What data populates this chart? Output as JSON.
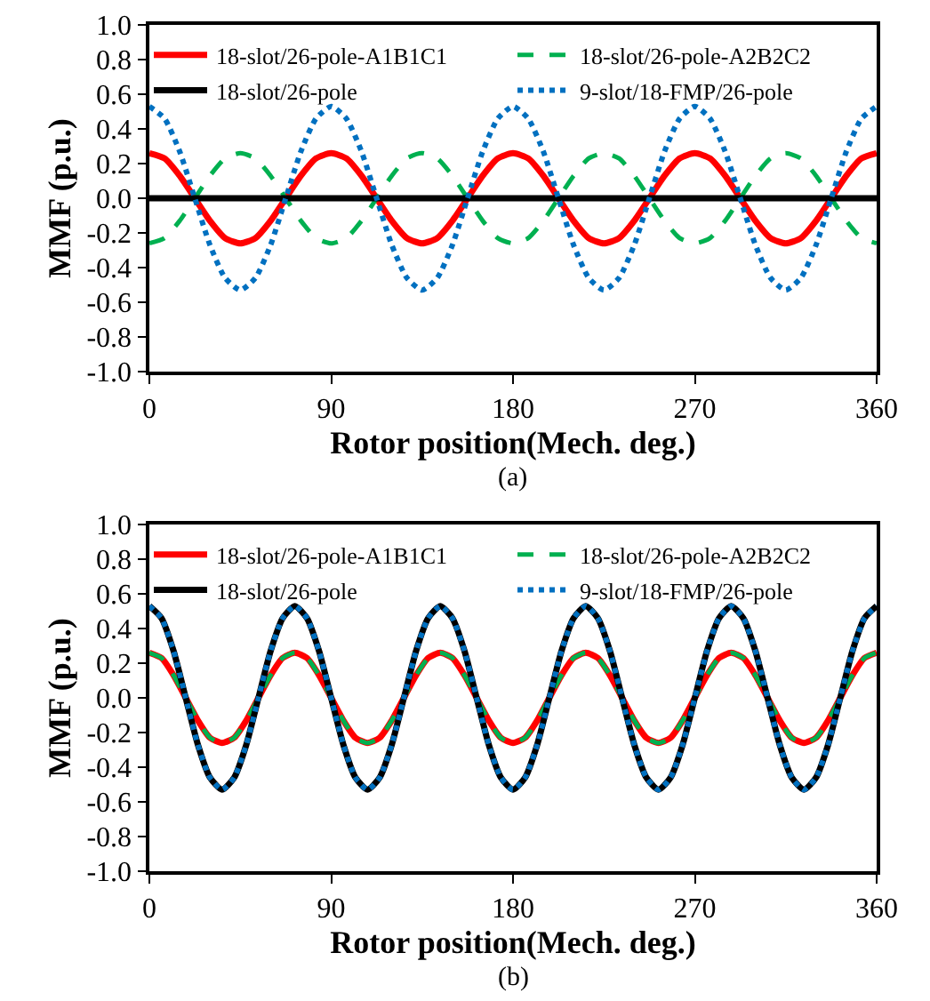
{
  "chart_data": [
    {
      "type": "line",
      "xlabel": "Rotor position(Mech. deg.)",
      "ylabel": "MMF (p.u.)",
      "annotations": [
        "(a)"
      ],
      "legend": "top",
      "grid": false,
      "marker": "none",
      "xlim": [
        0,
        360
      ],
      "xticks": [
        0,
        90,
        180,
        270,
        360
      ],
      "ylim": [
        -1,
        1
      ],
      "yticks": [
        {
          "value": -1,
          "label": "-1.0"
        },
        {
          "value": -0.8,
          "label": "-0.8"
        },
        {
          "value": -0.6,
          "label": "-0.6"
        },
        {
          "value": -0.4,
          "label": "-0.4"
        },
        {
          "value": -0.2,
          "label": "-0.2"
        },
        {
          "value": 0,
          "label": "0.0"
        },
        {
          "value": 0.2,
          "label": "0.2"
        },
        {
          "value": 0.4,
          "label": "0.4"
        },
        {
          "value": 0.6,
          "label": "0.6"
        },
        {
          "value": 0.8,
          "label": "0.8"
        },
        {
          "value": 1,
          "label": "1.0"
        }
      ],
      "x": [
        0,
        7.5,
        15,
        22.5,
        30,
        37.5,
        45,
        52.5,
        60,
        67.5,
        75,
        82.5,
        90,
        97.5,
        105,
        112.5,
        120,
        127.5,
        135,
        142.5,
        150,
        157.5,
        165,
        172.5,
        180,
        187.5,
        195,
        202.5,
        210,
        217.5,
        225,
        232.5,
        240,
        247.5,
        255,
        262.5,
        270,
        277.5,
        285,
        292.5,
        300,
        307.5,
        315,
        322.5,
        330,
        337.5,
        345,
        352.5,
        360
      ],
      "series": [
        {
          "name": "18-slot/26-pole-A1B1C1",
          "color": "#ff0000",
          "line_style": "solid",
          "values": [
            0.26,
            0.23,
            0.13,
            0,
            -0.13,
            -0.23,
            -0.26,
            -0.23,
            -0.13,
            0,
            0.13,
            0.23,
            0.26,
            0.23,
            0.13,
            0,
            -0.13,
            -0.23,
            -0.26,
            -0.23,
            -0.13,
            0,
            0.13,
            0.23,
            0.26,
            0.23,
            0.13,
            0,
            -0.13,
            -0.23,
            -0.26,
            -0.23,
            -0.13,
            0,
            0.13,
            0.23,
            0.26,
            0.23,
            0.13,
            0,
            -0.13,
            -0.23,
            -0.26,
            -0.23,
            -0.13,
            0,
            0.13,
            0.23,
            0.26
          ]
        },
        {
          "name": "18-slot/26-pole-A2B2C2",
          "color": "#00b050",
          "line_style": "dashed",
          "values": [
            -0.26,
            -0.23,
            -0.13,
            0,
            0.13,
            0.23,
            0.26,
            0.23,
            0.13,
            0,
            -0.13,
            -0.23,
            -0.26,
            -0.23,
            -0.13,
            0,
            0.13,
            0.23,
            0.26,
            0.23,
            0.13,
            0,
            -0.13,
            -0.23,
            -0.26,
            -0.23,
            -0.13,
            0,
            0.13,
            0.23,
            0.26,
            0.23,
            0.13,
            0,
            -0.13,
            -0.23,
            -0.26,
            -0.23,
            -0.13,
            0,
            0.13,
            0.23,
            0.26,
            0.23,
            0.13,
            0,
            -0.13,
            -0.23,
            -0.26
          ]
        },
        {
          "name": "18-slot/26-pole",
          "color": "#000000",
          "line_style": "solid",
          "values": [
            0,
            0,
            0,
            0,
            0,
            0,
            0,
            0,
            0,
            0,
            0,
            0,
            0,
            0,
            0,
            0,
            0,
            0,
            0,
            0,
            0,
            0,
            0,
            0,
            0,
            0,
            0,
            0,
            0,
            0,
            0,
            0,
            0,
            0,
            0,
            0,
            0,
            0,
            0,
            0,
            0,
            0,
            0,
            0,
            0,
            0,
            0,
            0,
            0
          ]
        },
        {
          "name": "9-slot/18-FMP/26-pole",
          "color": "#0070c0",
          "line_style": "dotted",
          "values": [
            0.53,
            0.46,
            0.27,
            0,
            -0.27,
            -0.46,
            -0.53,
            -0.46,
            -0.27,
            0,
            0.27,
            0.46,
            0.53,
            0.46,
            0.27,
            0,
            -0.27,
            -0.46,
            -0.53,
            -0.46,
            -0.27,
            0,
            0.27,
            0.46,
            0.53,
            0.46,
            0.27,
            0,
            -0.27,
            -0.46,
            -0.53,
            -0.46,
            -0.27,
            0,
            0.27,
            0.46,
            0.53,
            0.46,
            0.27,
            0,
            -0.27,
            -0.46,
            -0.53,
            -0.46,
            -0.27,
            0,
            0.27,
            0.46,
            0.53
          ]
        }
      ]
    },
    {
      "type": "line",
      "xlabel": "Rotor position(Mech. deg.)",
      "ylabel": "MMF (p.u.)",
      "annotations": [
        "(b)"
      ],
      "legend": "top",
      "grid": false,
      "marker": "none",
      "xlim": [
        0,
        360
      ],
      "xticks": [
        0,
        90,
        180,
        270,
        360
      ],
      "ylim": [
        -1,
        1
      ],
      "yticks": [
        {
          "value": -1,
          "label": "-1.0"
        },
        {
          "value": -0.8,
          "label": "-0.8"
        },
        {
          "value": -0.6,
          "label": "-0.6"
        },
        {
          "value": -0.4,
          "label": "-0.4"
        },
        {
          "value": -0.2,
          "label": "-0.2"
        },
        {
          "value": 0,
          "label": "0.0"
        },
        {
          "value": 0.2,
          "label": "0.2"
        },
        {
          "value": 0.4,
          "label": "0.4"
        },
        {
          "value": 0.6,
          "label": "0.6"
        },
        {
          "value": 0.8,
          "label": "0.8"
        },
        {
          "value": 1,
          "label": "1.0"
        }
      ],
      "x": [
        0,
        6,
        12,
        18,
        24,
        30,
        36,
        42,
        48,
        54,
        60,
        66,
        72,
        78,
        84,
        90,
        96,
        102,
        108,
        114,
        120,
        126,
        132,
        138,
        144,
        150,
        156,
        162,
        168,
        174,
        180,
        186,
        192,
        198,
        204,
        210,
        216,
        222,
        228,
        234,
        240,
        246,
        252,
        258,
        264,
        270,
        276,
        282,
        288,
        294,
        300,
        306,
        312,
        318,
        324,
        330,
        336,
        342,
        348,
        354,
        360
      ],
      "series": [
        {
          "name": "18-slot/26-pole-A1B1C1",
          "color": "#ff0000",
          "line_style": "solid",
          "values": [
            0.26,
            0.23,
            0.13,
            0,
            -0.13,
            -0.23,
            -0.26,
            -0.23,
            -0.13,
            0,
            0.13,
            0.23,
            0.26,
            0.23,
            0.13,
            0,
            -0.13,
            -0.23,
            -0.26,
            -0.23,
            -0.13,
            0,
            0.13,
            0.23,
            0.26,
            0.23,
            0.13,
            0,
            -0.13,
            -0.23,
            -0.26,
            -0.23,
            -0.13,
            0,
            0.13,
            0.23,
            0.26,
            0.23,
            0.13,
            0,
            -0.13,
            -0.23,
            -0.26,
            -0.23,
            -0.13,
            0,
            0.13,
            0.23,
            0.26,
            0.23,
            0.13,
            0,
            -0.13,
            -0.23,
            -0.26,
            -0.23,
            -0.13,
            0,
            0.13,
            0.23,
            0.26
          ]
        },
        {
          "name": "18-slot/26-pole-A2B2C2",
          "color": "#00b050",
          "line_style": "dashed",
          "values": [
            0.26,
            0.23,
            0.13,
            0,
            -0.13,
            -0.23,
            -0.26,
            -0.23,
            -0.13,
            0,
            0.13,
            0.23,
            0.26,
            0.23,
            0.13,
            0,
            -0.13,
            -0.23,
            -0.26,
            -0.23,
            -0.13,
            0,
            0.13,
            0.23,
            0.26,
            0.23,
            0.13,
            0,
            -0.13,
            -0.23,
            -0.26,
            -0.23,
            -0.13,
            0,
            0.13,
            0.23,
            0.26,
            0.23,
            0.13,
            0,
            -0.13,
            -0.23,
            -0.26,
            -0.23,
            -0.13,
            0,
            0.13,
            0.23,
            0.26,
            0.23,
            0.13,
            0,
            -0.13,
            -0.23,
            -0.26,
            -0.23,
            -0.13,
            0,
            0.13,
            0.23,
            0.26
          ]
        },
        {
          "name": "18-slot/26-pole",
          "color": "#000000",
          "line_style": "solid",
          "values": [
            0.53,
            0.46,
            0.27,
            0,
            -0.27,
            -0.46,
            -0.53,
            -0.46,
            -0.27,
            0,
            0.27,
            0.46,
            0.53,
            0.46,
            0.27,
            0,
            -0.27,
            -0.46,
            -0.53,
            -0.46,
            -0.27,
            0,
            0.27,
            0.46,
            0.53,
            0.46,
            0.27,
            0,
            -0.27,
            -0.46,
            -0.53,
            -0.46,
            -0.27,
            0,
            0.27,
            0.46,
            0.53,
            0.46,
            0.27,
            0,
            -0.27,
            -0.46,
            -0.53,
            -0.46,
            -0.27,
            0,
            0.27,
            0.46,
            0.53,
            0.46,
            0.27,
            0,
            -0.27,
            -0.46,
            -0.53,
            -0.46,
            -0.27,
            0,
            0.27,
            0.46,
            0.53
          ]
        },
        {
          "name": "9-slot/18-FMP/26-pole",
          "color": "#0070c0",
          "line_style": "dotted",
          "values": [
            0.53,
            0.46,
            0.27,
            0,
            -0.27,
            -0.46,
            -0.53,
            -0.46,
            -0.27,
            0,
            0.27,
            0.46,
            0.53,
            0.46,
            0.27,
            0,
            -0.27,
            -0.46,
            -0.53,
            -0.46,
            -0.27,
            0,
            0.27,
            0.46,
            0.53,
            0.46,
            0.27,
            0,
            -0.27,
            -0.46,
            -0.53,
            -0.46,
            -0.27,
            0,
            0.27,
            0.46,
            0.53,
            0.46,
            0.27,
            0,
            -0.27,
            -0.46,
            -0.53,
            -0.46,
            -0.27,
            0,
            0.27,
            0.46,
            0.53,
            0.46,
            0.27,
            0,
            -0.27,
            -0.46,
            -0.53,
            -0.46,
            -0.27,
            0,
            0.27,
            0.46,
            0.53
          ]
        }
      ]
    }
  ]
}
